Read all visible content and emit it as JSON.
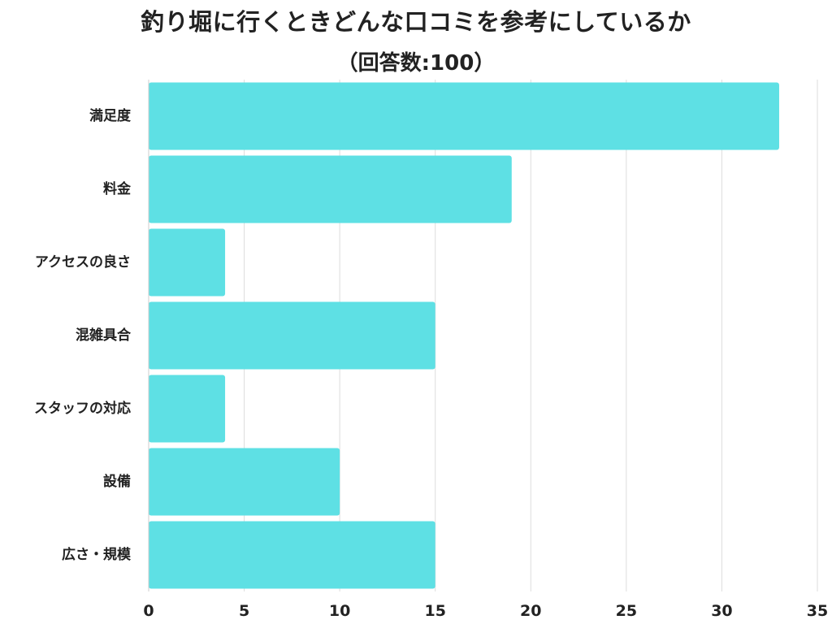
{
  "chart_data": {
    "type": "bar",
    "orientation": "horizontal",
    "title": "釣り堀に行くときどんな口コミを参考にしているか",
    "subtitle": "（回答数:100）",
    "categories": [
      "満足度",
      "料金",
      "アクセスの良さ",
      "混雑具合",
      "スタッフの対応",
      "設備",
      "広さ・規模"
    ],
    "values": [
      33,
      19,
      4,
      15,
      4,
      10,
      15
    ],
    "xlabel": "",
    "ylabel": "",
    "xlim": [
      0,
      35
    ],
    "x_ticks": [
      "0",
      "5",
      "10",
      "15",
      "20",
      "25",
      "30",
      "35"
    ],
    "grid": true,
    "legend": "none",
    "colors": {
      "bar": "#5ee0e4",
      "grid": "#dddddd",
      "text": "#222222"
    }
  }
}
